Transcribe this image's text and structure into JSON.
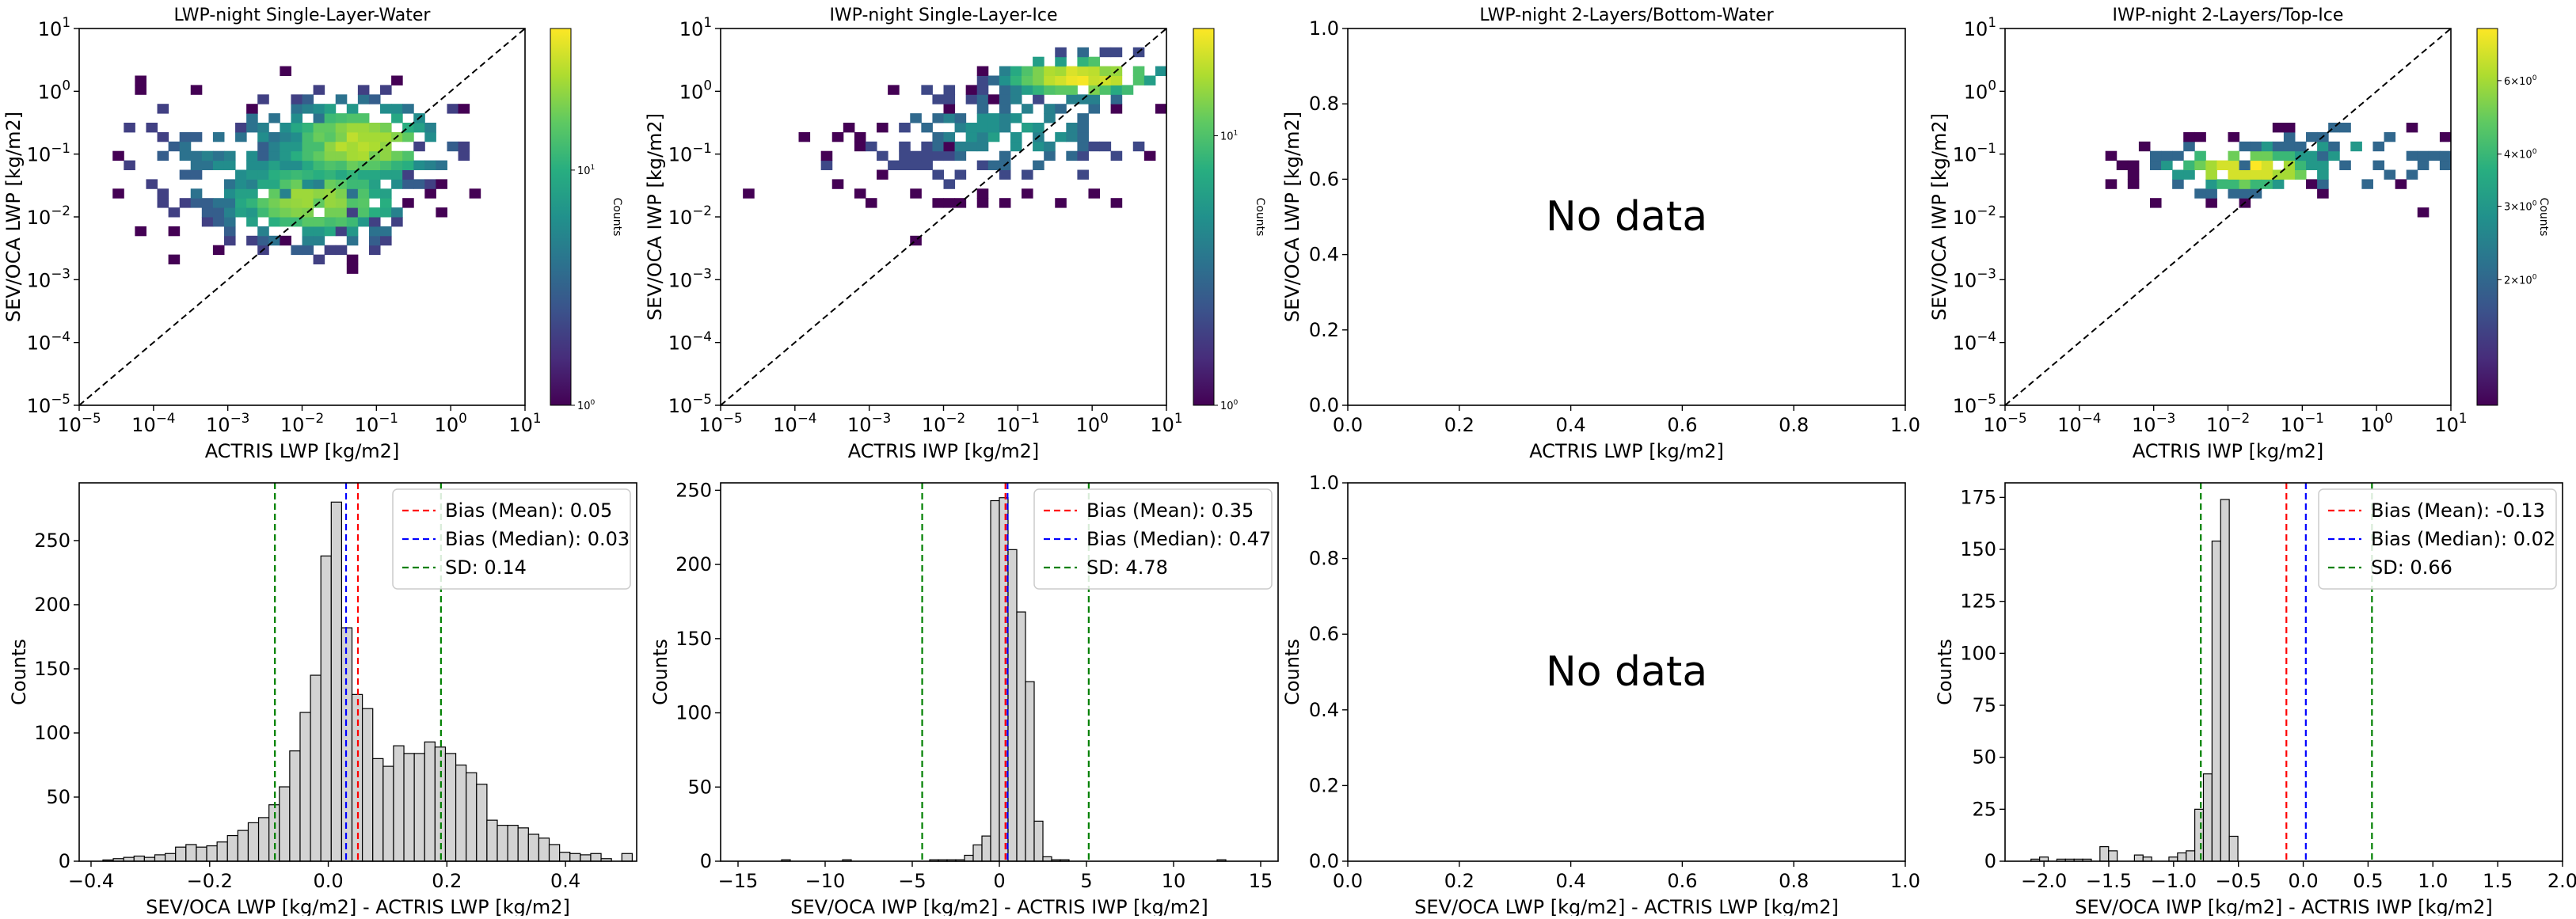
{
  "figure": {
    "colorbar_label": "Counts",
    "no_data_text": "No data",
    "colormap": [
      "#440154",
      "#472d7b",
      "#3b528b",
      "#2c728e",
      "#21918c",
      "#28ae80",
      "#5ec962",
      "#addc30",
      "#fde725"
    ]
  },
  "chart_data": [
    {
      "type": "heatmap",
      "title": "LWP-night Single-Layer-Water",
      "xlabel": "ACTRIS LWP [kg/m2]",
      "ylabel": "SEV/OCA LWP [kg/m2]",
      "xscale": "log",
      "yscale": "log",
      "xlim": [
        -5,
        1
      ],
      "ylim": [
        -5,
        1
      ],
      "xticks": [
        "10^-5",
        "10^-4",
        "10^-3",
        "10^-2",
        "10^-1",
        "10^0",
        "10^1"
      ],
      "yticks": [
        "10^-5",
        "10^-4",
        "10^-3",
        "10^-2",
        "10^-1",
        "10^0",
        "10^1"
      ],
      "diagonal": true,
      "colorbar": {
        "scale": "log",
        "range": [
          1,
          40
        ],
        "tick_labels": [
          "10^0",
          "10^1"
        ]
      },
      "clusters": [
        {
          "cx": -1.3,
          "cy": -0.9,
          "sx": 0.6,
          "sy": 0.35,
          "n": 260,
          "peak": 30
        },
        {
          "cx": -1.9,
          "cy": -1.8,
          "sx": 0.7,
          "sy": 0.35,
          "n": 200,
          "peak": 25
        },
        {
          "cx": -2.4,
          "cy": -1.2,
          "sx": 1.0,
          "sy": 0.6,
          "n": 140,
          "peak": 8
        }
      ],
      "bin_count": 40,
      "seed": 11
    },
    {
      "type": "heatmap",
      "title": "IWP-night Single-Layer-Ice",
      "xlabel": "ACTRIS IWP [kg/m2]",
      "ylabel": "SEV/OCA IWP [kg/m2]",
      "xscale": "log",
      "yscale": "log",
      "xlim": [
        -5,
        1
      ],
      "ylim": [
        -5,
        1
      ],
      "xticks": [
        "10^-5",
        "10^-4",
        "10^-3",
        "10^-2",
        "10^-1",
        "10^0",
        "10^1"
      ],
      "yticks": [
        "10^-5",
        "10^-4",
        "10^-3",
        "10^-2",
        "10^-1",
        "10^0",
        "10^1"
      ],
      "diagonal": true,
      "colorbar": {
        "scale": "log",
        "range": [
          1,
          25
        ],
        "tick_labels": [
          "10^0",
          "10^1"
        ]
      },
      "clusters": [
        {
          "cx": -0.2,
          "cy": 0.15,
          "sx": 0.6,
          "sy": 0.18,
          "n": 120,
          "peak": 25
        },
        {
          "cx": -1.2,
          "cy": -0.7,
          "sx": 0.9,
          "sy": 0.45,
          "n": 120,
          "peak": 6
        },
        {
          "cx": -2.8,
          "cy": -1.1,
          "sx": 0.8,
          "sy": 0.4,
          "n": 25,
          "peak": 2
        }
      ],
      "bin_count": 40,
      "seed": 23
    },
    {
      "type": "empty",
      "title": "LWP-night 2-Layers/Bottom-Water",
      "xlabel": "ACTRIS LWP [kg/m2]",
      "ylabel": "SEV/OCA LWP [kg/m2]",
      "xlim": [
        0,
        1
      ],
      "ylim": [
        0,
        1
      ],
      "xticks": [
        "0.0",
        "0.2",
        "0.4",
        "0.6",
        "0.8",
        "1.0"
      ],
      "yticks": [
        "0.0",
        "0.2",
        "0.4",
        "0.6",
        "0.8",
        "1.0"
      ]
    },
    {
      "type": "heatmap",
      "title": "IWP-night 2-Layers/Top-Ice",
      "xlabel": "ACTRIS IWP [kg/m2]",
      "ylabel": "SEV/OCA IWP [kg/m2]",
      "xscale": "log",
      "yscale": "log",
      "xlim": [
        -5,
        1
      ],
      "ylim": [
        -5,
        1
      ],
      "xticks": [
        "10^-5",
        "10^-4",
        "10^-3",
        "10^-2",
        "10^-1",
        "10^0",
        "10^1"
      ],
      "yticks": [
        "10^-5",
        "10^-4",
        "10^-3",
        "10^-2",
        "10^-1",
        "10^0",
        "10^1"
      ],
      "diagonal": true,
      "colorbar": {
        "scale": "log",
        "range": [
          1,
          8
        ],
        "tick_labels": [
          "2×10^0",
          "3×10^0",
          "4×10^0",
          "6×10^0"
        ],
        "tick_values": [
          2,
          3,
          4,
          6
        ]
      },
      "clusters": [
        {
          "cx": -1.8,
          "cy": -1.3,
          "sx": 0.7,
          "sy": 0.22,
          "n": 110,
          "peak": 8
        },
        {
          "cx": -0.5,
          "cy": -1.1,
          "sx": 1.0,
          "sy": 0.3,
          "n": 55,
          "peak": 3
        }
      ],
      "bin_count": 40,
      "seed": 37
    },
    {
      "type": "bar",
      "title": "",
      "xlabel": "SEV/OCA LWP [kg/m2] - ACTRIS LWP [kg/m2]",
      "ylabel": "Counts",
      "xlim": [
        -0.42,
        0.52
      ],
      "ylim": [
        0,
        295
      ],
      "xticks": [
        -0.4,
        -0.2,
        0.0,
        0.2,
        0.4
      ],
      "xtick_labels": [
        "−0.4",
        "−0.2",
        "0.0",
        "0.2",
        "0.4"
      ],
      "yticks": [
        0,
        50,
        100,
        150,
        200,
        250
      ],
      "bin_start": -0.38,
      "bin_width": 0.0175,
      "values": [
        1,
        2,
        3,
        4,
        3,
        5,
        6,
        11,
        13,
        11,
        12,
        15,
        20,
        24,
        30,
        34,
        44,
        58,
        86,
        116,
        145,
        238,
        280,
        182,
        130,
        119,
        80,
        74,
        90,
        84,
        84,
        93,
        89,
        84,
        75,
        69,
        60,
        32,
        28,
        28,
        26,
        21,
        18,
        13,
        7,
        6,
        5,
        6,
        2,
        0,
        6
      ],
      "lines": {
        "mean": 0.05,
        "median": 0.03,
        "sd": 0.14
      },
      "legend": [
        "Bias (Mean): 0.05",
        "Bias (Median): 0.03",
        "SD: 0.14"
      ]
    },
    {
      "type": "bar",
      "title": "",
      "xlabel": "SEV/OCA IWP [kg/m2] - ACTRIS IWP [kg/m2]",
      "ylabel": "Counts",
      "xlim": [
        -16,
        16
      ],
      "ylim": [
        0,
        255
      ],
      "xticks": [
        -15,
        -10,
        -5,
        0,
        5,
        10,
        15
      ],
      "xtick_labels": [
        "−15",
        "−10",
        "−5",
        "0",
        "5",
        "10",
        "15"
      ],
      "yticks": [
        0,
        50,
        100,
        150,
        200,
        250
      ],
      "bin_start": -12.5,
      "bin_width": 0.5,
      "values": [
        1,
        0,
        0,
        0,
        0,
        0,
        0,
        1,
        0,
        0,
        0,
        0,
        0,
        0,
        0,
        0,
        0,
        1,
        1,
        1,
        1,
        4,
        11,
        17,
        243,
        245,
        210,
        168,
        121,
        27,
        3,
        1,
        1,
        0,
        0,
        0,
        0,
        0,
        0,
        0,
        0,
        0,
        0,
        0,
        0,
        0,
        0,
        0,
        0,
        0,
        1
      ],
      "lines": {
        "mean": 0.35,
        "median": 0.47,
        "sd": 4.78
      },
      "legend": [
        "Bias (Mean): 0.35",
        "Bias (Median): 0.47",
        "SD: 4.78"
      ]
    },
    {
      "type": "empty",
      "title": "",
      "xlabel": "SEV/OCA LWP [kg/m2] - ACTRIS LWP [kg/m2]",
      "ylabel": "Counts",
      "xlim": [
        0,
        1
      ],
      "ylim": [
        0,
        1
      ],
      "xticks": [
        "0.0",
        "0.2",
        "0.4",
        "0.6",
        "0.8",
        "1.0"
      ],
      "yticks": [
        "0.0",
        "0.2",
        "0.4",
        "0.6",
        "0.8",
        "1.0"
      ]
    },
    {
      "type": "bar",
      "title": "",
      "xlabel": "SEV/OCA IWP [kg/m2] - ACTRIS IWP [kg/m2]",
      "ylabel": "Counts",
      "xlim": [
        -2.3,
        2.0
      ],
      "ylim": [
        0,
        182
      ],
      "xticks": [
        -2.0,
        -1.5,
        -1.0,
        -0.5,
        0.0,
        0.5,
        1.0,
        1.5,
        2.0
      ],
      "xtick_labels": [
        "−2.0",
        "−1.5",
        "−1.0",
        "−0.5",
        "0.0",
        "0.5",
        "1.0",
        "1.5",
        "2.0"
      ],
      "yticks": [
        0,
        25,
        50,
        75,
        100,
        125,
        150,
        175
      ],
      "bin_start": -2.1,
      "bin_width": 0.0665,
      "values": [
        1,
        2,
        0,
        1,
        1,
        1,
        1,
        0,
        7,
        5,
        0,
        0,
        3,
        2,
        0,
        0,
        2,
        4,
        5,
        25,
        42,
        154,
        174,
        12
      ],
      "lines": {
        "mean": -0.13,
        "median": 0.02,
        "sd": 0.66
      },
      "legend": [
        "Bias (Mean): -0.13",
        "Bias (Median): 0.02",
        "SD: 0.66"
      ]
    }
  ]
}
